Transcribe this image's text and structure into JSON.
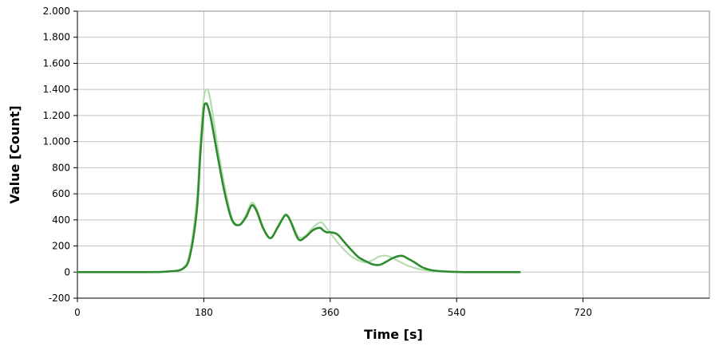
{
  "chart_data": {
    "type": "line",
    "xlabel": "Time [s]",
    "ylabel": "Value [Count]",
    "xlim": [
      0,
      900
    ],
    "ylim": [
      -200,
      2000
    ],
    "x_ticks": [
      0,
      180,
      360,
      540,
      720
    ],
    "x_tick_labels": [
      "0",
      "180",
      "360",
      "540",
      "720"
    ],
    "y_ticks": [
      -200,
      0,
      200,
      400,
      600,
      800,
      1000,
      1200,
      1400,
      1600,
      1800,
      2000
    ],
    "y_tick_labels": [
      "-200",
      "0",
      "200",
      "400",
      "600",
      "800",
      "1.000",
      "1.200",
      "1.400",
      "1.600",
      "1.800",
      "2.000"
    ],
    "grid": true,
    "legend": "none",
    "series": [
      {
        "color": "#b7dcb0",
        "x": [
          0,
          100,
          130,
          150,
          160,
          170,
          175,
          180,
          185,
          190,
          200,
          210,
          220,
          230,
          240,
          248,
          255,
          265,
          275,
          285,
          295,
          300,
          305,
          315,
          325,
          335,
          345,
          350,
          360,
          370,
          380,
          390,
          400,
          410,
          420,
          430,
          440,
          448,
          455,
          470,
          485,
          500,
          520,
          540,
          560,
          580,
          600
        ],
        "y": [
          0,
          0,
          5,
          30,
          150,
          550,
          1000,
          1330,
          1400,
          1300,
          950,
          650,
          420,
          360,
          440,
          530,
          490,
          340,
          260,
          350,
          440,
          430,
          380,
          270,
          280,
          340,
          380,
          370,
          300,
          230,
          170,
          120,
          90,
          75,
          90,
          120,
          125,
          110,
          90,
          50,
          25,
          10,
          3,
          0,
          0,
          0,
          0
        ]
      },
      {
        "color": "#2e8b2e",
        "x": [
          0,
          100,
          130,
          150,
          160,
          170,
          175,
          180,
          183,
          185,
          190,
          200,
          210,
          220,
          230,
          240,
          248,
          255,
          265,
          275,
          285,
          295,
          300,
          305,
          315,
          325,
          335,
          345,
          350,
          355,
          360,
          370,
          380,
          390,
          400,
          410,
          420,
          430,
          440,
          450,
          460,
          465,
          470,
          480,
          490,
          500,
          510,
          530,
          550,
          570,
          590,
          610,
          630
        ],
        "y": [
          0,
          0,
          5,
          25,
          120,
          470,
          900,
          1250,
          1290,
          1280,
          1180,
          880,
          600,
          400,
          360,
          420,
          510,
          470,
          330,
          260,
          340,
          430,
          425,
          370,
          250,
          270,
          320,
          340,
          320,
          305,
          305,
          290,
          230,
          170,
          115,
          85,
          60,
          55,
          80,
          110,
          125,
          120,
          105,
          75,
          40,
          20,
          10,
          3,
          0,
          0,
          0,
          0,
          0
        ]
      }
    ]
  }
}
